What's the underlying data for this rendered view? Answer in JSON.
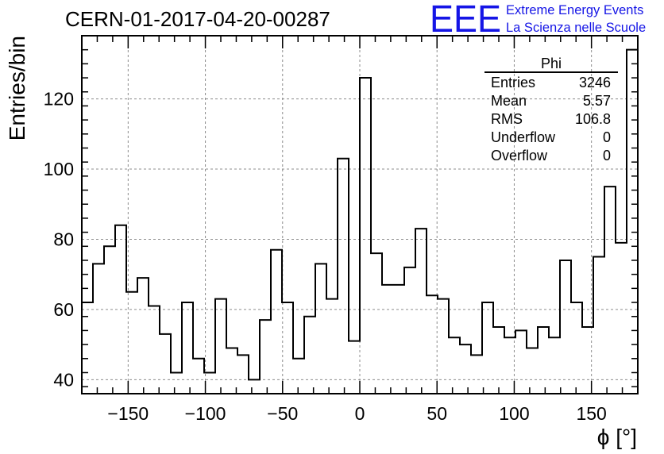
{
  "header": {
    "run_title": "CERN-01-2017-04-20-00287",
    "logo_text": "EEE",
    "project_line1": "Extreme Energy Events",
    "project_line2": "La Scienza nelle Scuole",
    "logo_color": "#1515e6"
  },
  "stats_box": {
    "title": "Phi",
    "rows": [
      {
        "label": "Entries",
        "value": "3246"
      },
      {
        "label": "Mean",
        "value": "5.57"
      },
      {
        "label": "RMS",
        "value": "106.8"
      },
      {
        "label": "Underflow",
        "value": "0"
      },
      {
        "label": "Overflow",
        "value": "0"
      }
    ]
  },
  "chart_data": {
    "type": "bar",
    "style": "step-histogram",
    "xlabel": "ϕ [°]",
    "ylabel": "Entries/bin",
    "xlim": [
      -180,
      180
    ],
    "ylim": [
      36,
      138
    ],
    "bin_width": 7.2,
    "grid": true,
    "x_ticks": [
      -150,
      -100,
      -50,
      0,
      50,
      100,
      150
    ],
    "x_tick_labels": [
      "−150",
      "−100",
      "−50",
      "0",
      "50",
      "100",
      "150"
    ],
    "y_ticks": [
      40,
      60,
      80,
      100,
      120
    ],
    "y_tick_labels": [
      "40",
      "60",
      "80",
      "100",
      "120"
    ],
    "values": [
      62,
      73,
      78,
      84,
      65,
      69,
      61,
      53,
      42,
      62,
      46,
      42,
      63,
      49,
      47,
      40,
      57,
      77,
      62,
      46,
      58,
      73,
      63,
      103,
      51,
      126,
      76,
      67,
      67,
      72,
      83,
      64,
      63,
      52,
      50,
      47,
      62,
      55,
      52,
      54,
      49,
      55,
      52,
      74,
      62,
      55,
      75,
      95,
      79,
      134
    ]
  }
}
